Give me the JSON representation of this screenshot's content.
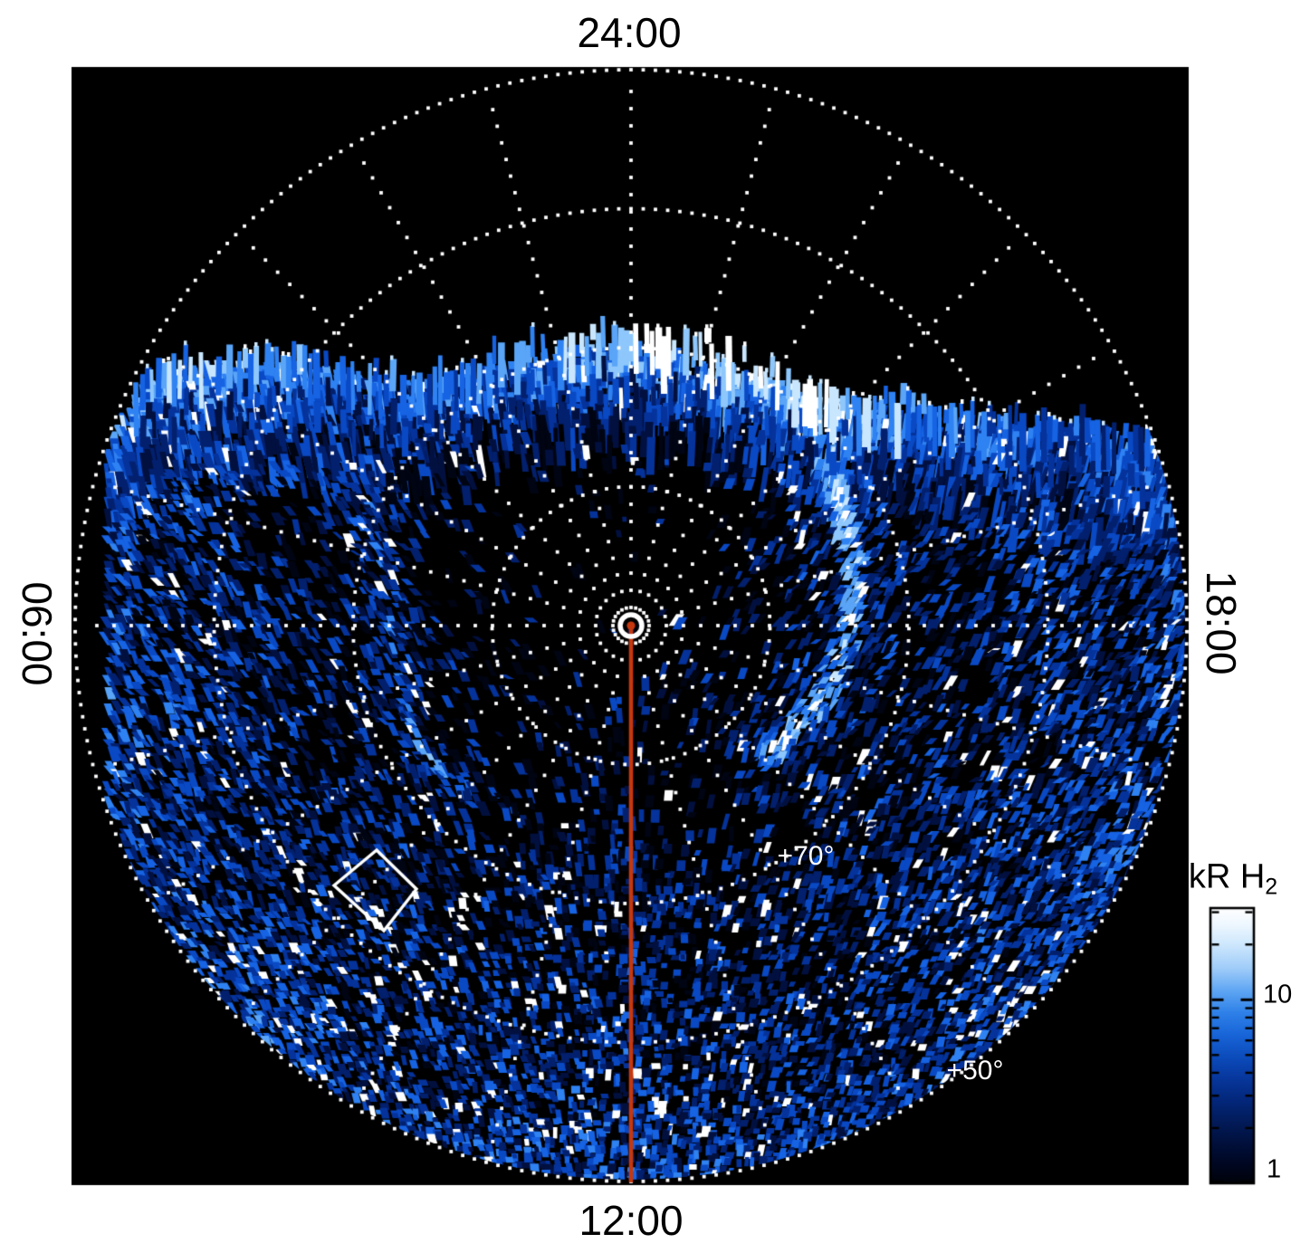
{
  "figure": {
    "background": "#ffffff",
    "plot_background": "#000000"
  },
  "plot": {
    "axis_labels": {
      "top": "24:00",
      "bottom": "12:00",
      "left": "06:00",
      "right": "18:00"
    },
    "annotations": {
      "lat70": "+70°",
      "lat50": "+50°"
    }
  },
  "colorbar": {
    "title_main": "kR H",
    "title_sub": "2",
    "label_10": "10",
    "label_1": "1"
  },
  "chart_data": {
    "type": "heatmap",
    "projection": "polar local-time vs latitude, pole at center",
    "title": "",
    "local_time_labels": {
      "top": "24:00",
      "left": "06:00",
      "bottom": "12:00",
      "right": "18:00"
    },
    "grid": {
      "style": "white dotted",
      "latitude_circles_deg": [
        80,
        70,
        60,
        50
      ],
      "outer_boundary_latitude_deg": 50,
      "hour_line_step_hours": 1
    },
    "latitude_annotations": [
      {
        "label": "+70°",
        "latitude_deg": 70
      },
      {
        "label": "+50°",
        "latitude_deg": 50
      }
    ],
    "colorbar": {
      "label": "kR H2",
      "scale": "log",
      "min": 1,
      "max": 31.6,
      "labeled_ticks": [
        10,
        1
      ],
      "minor_ticks": [
        2,
        3,
        4,
        5,
        6,
        7,
        8,
        9,
        20,
        30
      ],
      "gradient_top_to_bottom": [
        {
          "t": 0,
          "c": "#ffffff"
        },
        {
          "t": 0.06,
          "c": "#eef7ff"
        },
        {
          "t": 0.13,
          "c": "#cfe8fd"
        },
        {
          "t": 0.22,
          "c": "#9fccf9"
        },
        {
          "t": 0.3,
          "c": "#5fa6f3"
        },
        {
          "t": 0.38,
          "c": "#2f81e9"
        },
        {
          "t": 0.46,
          "c": "#1865d8"
        },
        {
          "t": 0.54,
          "c": "#0c4cbc"
        },
        {
          "t": 0.62,
          "c": "#07379c"
        },
        {
          "t": 0.7,
          "c": "#03277a"
        },
        {
          "t": 0.78,
          "c": "#021b58"
        },
        {
          "t": 0.86,
          "c": "#010f3a"
        },
        {
          "t": 0.93,
          "c": "#000722"
        },
        {
          "t": 1,
          "c": "#000309"
        }
      ]
    },
    "palette_low_to_high": [
      "#010513",
      "#021040",
      "#03206e",
      "#05339b",
      "#0a49c4",
      "#1663e3",
      "#2f82f2",
      "#5aa5f7",
      "#8ec7fb",
      "#c8e6fe",
      "#ffffff"
    ],
    "noon_meridian_line": {
      "color": "#c5380f",
      "from": "pole",
      "to": "12:00 rim"
    },
    "pole_marker": {
      "shape": "ring",
      "ring_color": "#ffffff",
      "center_dot_color": "#c5380f"
    },
    "features": [
      {
        "name": "jagged-emission-band-top",
        "description": "vertical streaked emission band along the upper data boundary; brightest (white) around and right of 24:00, fading to blue toward 06:00 and 18:00"
      },
      {
        "name": "bright-arc-right",
        "description": "narrow bright white arc between about +70° and +80° on the 18:00 side, crossing the 06:00-18:00 line",
        "polyline": [
          [
            903,
            492
          ],
          [
            922,
            545
          ],
          [
            933,
            605
          ],
          [
            936,
            660
          ],
          [
            927,
            706
          ],
          [
            906,
            760
          ],
          [
            868,
            800
          ],
          [
            843,
            828
          ]
        ]
      },
      {
        "name": "faint-arc-left",
        "description": "fainter blue arc left of the pole, brightening to white near its lower end",
        "polyline": [
          [
            407,
            518
          ],
          [
            415,
            585
          ],
          [
            424,
            650
          ],
          [
            432,
            705
          ],
          [
            444,
            762
          ],
          [
            463,
            816
          ],
          [
            488,
            849
          ],
          [
            516,
            868
          ]
        ]
      },
      {
        "name": "diamond-marker",
        "description": "white diamond outline in the lower-left quadrant",
        "points": [
          [
            416,
            939
          ],
          [
            460,
            982
          ],
          [
            424,
            1028
          ],
          [
            369,
            978
          ]
        ]
      },
      {
        "name": "background-speckle",
        "description": "blue speckled emission (~1-10 kR) filling the disk below the band; denser and brighter toward outer latitudes and the 12:00 half; nearly black region around the pole"
      }
    ]
  }
}
